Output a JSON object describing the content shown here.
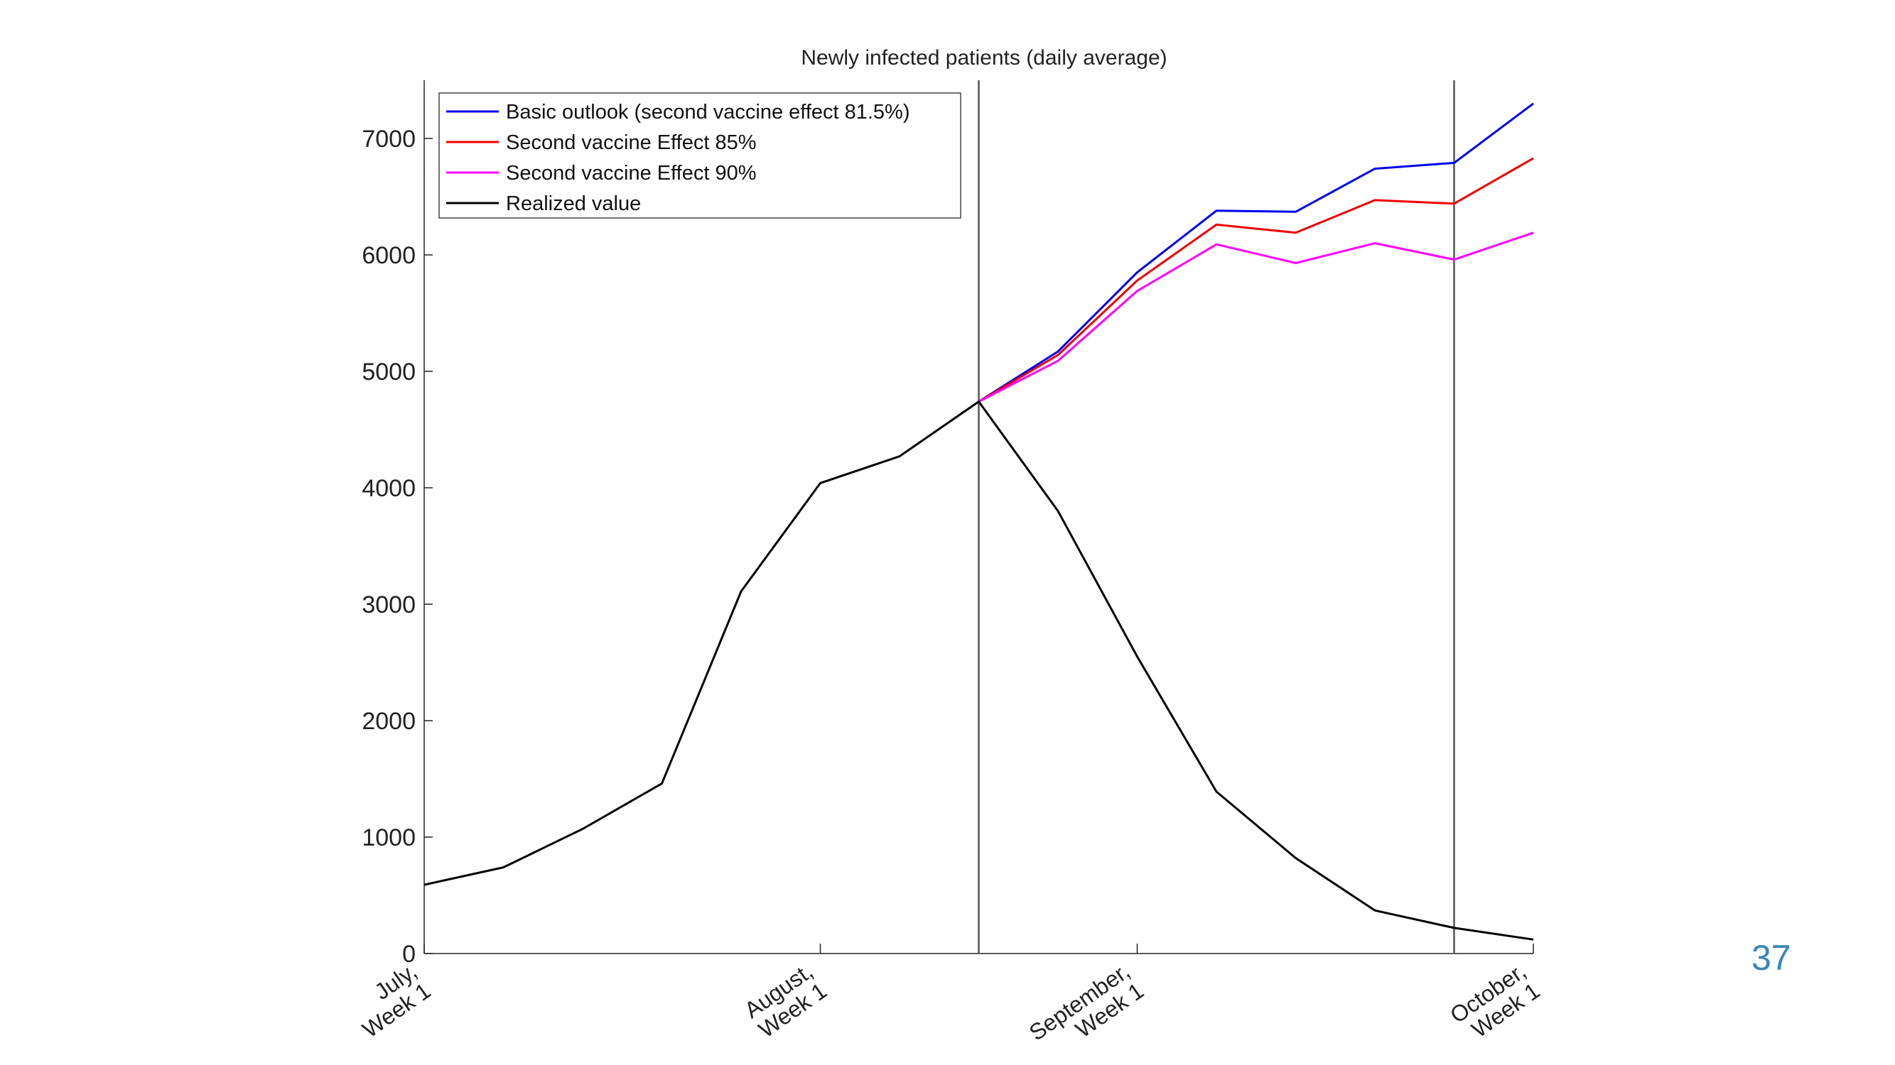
{
  "slide": {
    "page_number": "37"
  },
  "chart_data": {
    "type": "line",
    "title": "Newly infected patients (daily average)",
    "xlabel": "",
    "ylabel": "",
    "xlim": [
      0,
      14
    ],
    "ylim": [
      0,
      7500
    ],
    "yticks": [
      0,
      1000,
      2000,
      3000,
      4000,
      5000,
      6000,
      7000
    ],
    "xticks": [
      {
        "x": 0,
        "line1": "July,",
        "line2": "Week 1"
      },
      {
        "x": 5,
        "line1": "August,",
        "line2": "Week 1"
      },
      {
        "x": 9,
        "line1": "September,",
        "line2": "Week 1"
      },
      {
        "x": 14,
        "line1": "October,",
        "line2": "Week 1"
      }
    ],
    "vlines": [
      7,
      13
    ],
    "grid": false,
    "legend_position": "top-left",
    "series": [
      {
        "name": "Basic outlook (second vaccine effect 81.5%)",
        "color": "#0000ee",
        "x": [
          7,
          8,
          9,
          10,
          11,
          12,
          13,
          14
        ],
        "values": [
          4740,
          5170,
          5850,
          6380,
          6370,
          6740,
          6790,
          7300
        ]
      },
      {
        "name": "Second vaccine Effect 85%",
        "color": "#ee0000",
        "x": [
          7,
          8,
          9,
          10,
          11,
          12,
          13,
          14
        ],
        "values": [
          4740,
          5140,
          5780,
          6260,
          6190,
          6470,
          6440,
          6830
        ]
      },
      {
        "name": "Second vaccine Effect 90%",
        "color": "#ff00ff",
        "x": [
          7,
          8,
          9,
          10,
          11,
          12,
          13,
          14
        ],
        "values": [
          4740,
          5090,
          5690,
          6090,
          5930,
          6100,
          5960,
          6190
        ]
      },
      {
        "name": "Realized value",
        "color": "#000000",
        "x": [
          0,
          1,
          2,
          3,
          4,
          5,
          6,
          7,
          8,
          9,
          10,
          11,
          12,
          13,
          14
        ],
        "values": [
          590,
          740,
          1070,
          1460,
          3110,
          4040,
          4270,
          4740,
          3800,
          2550,
          1390,
          820,
          370,
          220,
          120
        ]
      }
    ]
  }
}
